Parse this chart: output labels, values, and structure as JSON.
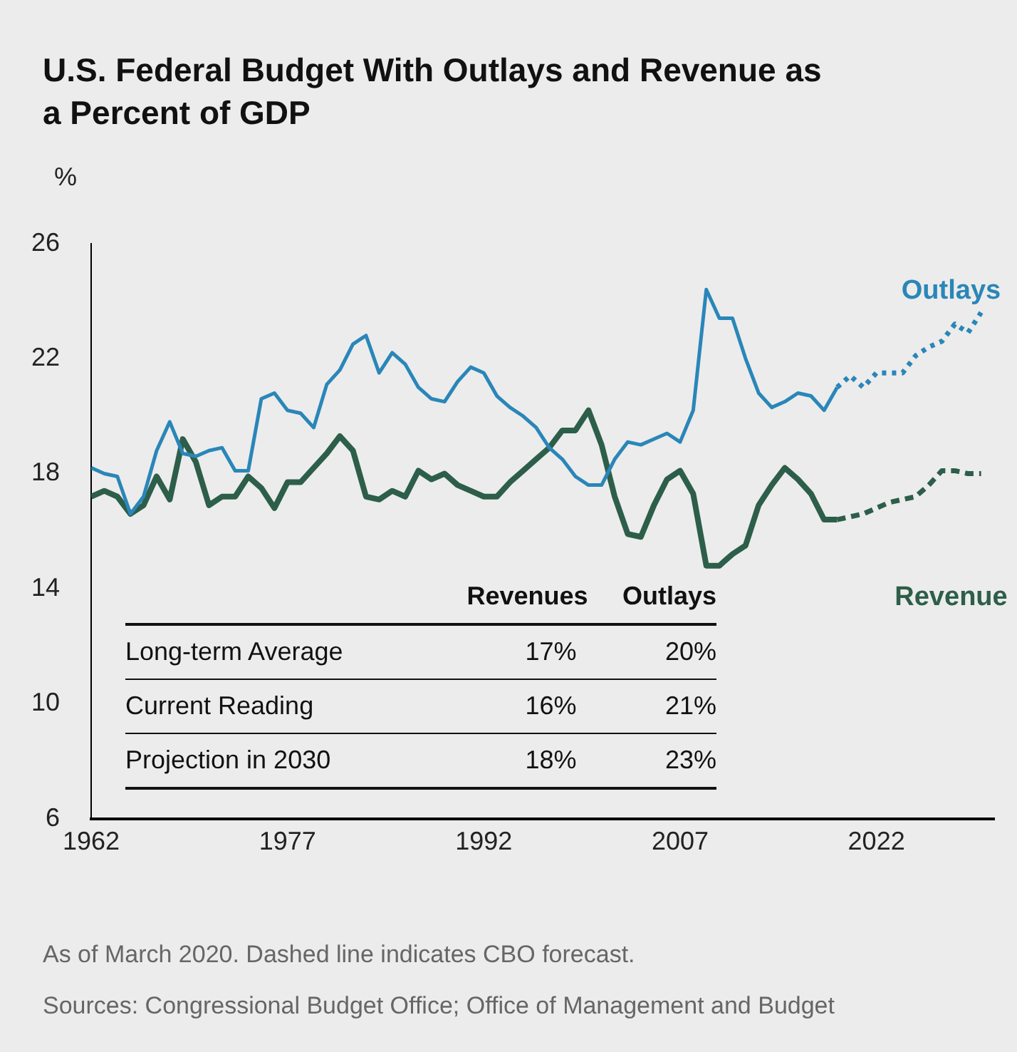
{
  "chart_data": {
    "type": "line",
    "title": "U.S. Federal Budget With Outlays and Revenue as a Percent of GDP",
    "ylabel": "%",
    "xlim": [
      1962,
      2031
    ],
    "xticks": [
      1962,
      1977,
      1992,
      2007,
      2022
    ],
    "ylim": [
      6,
      26
    ],
    "yticks": [
      6,
      10,
      14,
      18,
      22,
      26
    ],
    "grid": false,
    "legend": false,
    "marker": "none",
    "series": [
      {
        "name": "Outlays",
        "color": "#2a86b8",
        "line_style": "solid",
        "x": [
          1962,
          1963,
          1964,
          1965,
          1966,
          1967,
          1968,
          1969,
          1970,
          1971,
          1972,
          1973,
          1974,
          1975,
          1976,
          1977,
          1978,
          1979,
          1980,
          1981,
          1982,
          1983,
          1984,
          1985,
          1986,
          1987,
          1988,
          1989,
          1990,
          1991,
          1992,
          1993,
          1994,
          1995,
          1996,
          1997,
          1998,
          1999,
          2000,
          2001,
          2002,
          2003,
          2004,
          2005,
          2006,
          2007,
          2008,
          2009,
          2010,
          2011,
          2012,
          2013,
          2014,
          2015,
          2016,
          2017,
          2018,
          2019
        ],
        "values": [
          18.2,
          18.0,
          17.9,
          16.6,
          17.2,
          18.8,
          19.8,
          18.7,
          18.6,
          18.8,
          18.9,
          18.1,
          18.1,
          20.6,
          20.8,
          20.2,
          20.1,
          19.6,
          21.1,
          21.6,
          22.5,
          22.8,
          21.5,
          22.2,
          21.8,
          21.0,
          20.6,
          20.5,
          21.2,
          21.7,
          21.5,
          20.7,
          20.3,
          20.0,
          19.6,
          18.9,
          18.5,
          17.9,
          17.6,
          17.6,
          18.5,
          19.1,
          19.0,
          19.2,
          19.4,
          19.1,
          20.2,
          24.4,
          23.4,
          23.4,
          22.0,
          20.8,
          20.3,
          20.5,
          20.8,
          20.7,
          20.2,
          21.0
        ]
      },
      {
        "color": "#2a86b8",
        "line_style": "dotted",
        "x": [
          2019,
          2020,
          2021,
          2022,
          2023,
          2024,
          2025,
          2026,
          2027,
          2028,
          2029,
          2030
        ],
        "values": [
          21.0,
          21.4,
          21.0,
          21.5,
          21.5,
          21.5,
          22.1,
          22.4,
          22.6,
          23.2,
          22.9,
          23.6
        ]
      },
      {
        "name": "Revenue",
        "color": "#2d5e4a",
        "line_style": "solid",
        "x": [
          1962,
          1963,
          1964,
          1965,
          1966,
          1967,
          1968,
          1969,
          1970,
          1971,
          1972,
          1973,
          1974,
          1975,
          1976,
          1977,
          1978,
          1979,
          1980,
          1981,
          1982,
          1983,
          1984,
          1985,
          1986,
          1987,
          1988,
          1989,
          1990,
          1991,
          1992,
          1993,
          1994,
          1995,
          1996,
          1997,
          1998,
          1999,
          2000,
          2001,
          2002,
          2003,
          2004,
          2005,
          2006,
          2007,
          2008,
          2009,
          2010,
          2011,
          2012,
          2013,
          2014,
          2015,
          2016,
          2017,
          2018,
          2019
        ],
        "values": [
          17.2,
          17.4,
          17.2,
          16.6,
          16.9,
          17.9,
          17.1,
          19.2,
          18.4,
          16.9,
          17.2,
          17.2,
          17.9,
          17.5,
          16.8,
          17.7,
          17.7,
          18.2,
          18.7,
          19.3,
          18.8,
          17.2,
          17.1,
          17.4,
          17.2,
          18.1,
          17.8,
          18.0,
          17.6,
          17.4,
          17.2,
          17.2,
          17.7,
          18.1,
          18.5,
          18.9,
          19.5,
          19.5,
          20.2,
          19.0,
          17.2,
          15.9,
          15.8,
          16.9,
          17.8,
          18.1,
          17.3,
          14.8,
          14.8,
          15.2,
          15.5,
          16.9,
          17.6,
          18.2,
          17.8,
          17.3,
          16.4,
          16.4
        ]
      },
      {
        "color": "#2d5e4a",
        "line_style": "dashed",
        "x": [
          2019,
          2020,
          2021,
          2022,
          2023,
          2024,
          2025,
          2026,
          2027,
          2028,
          2029,
          2030
        ],
        "values": [
          16.4,
          16.5,
          16.6,
          16.8,
          17.0,
          17.1,
          17.2,
          17.6,
          18.1,
          18.1,
          18.0,
          18.0
        ]
      }
    ],
    "annotations": [
      "Revenues",
      "Outlays",
      "Long-term Average",
      "17%",
      "20%",
      "Current Reading",
      "16%",
      "21%",
      "Projection in 2030",
      "18%",
      "23%",
      "As of March 2020. Dashed line indicates CBO forecast.",
      "Sources: Congressional Budget Office; Office of Management and Budget"
    ]
  }
}
